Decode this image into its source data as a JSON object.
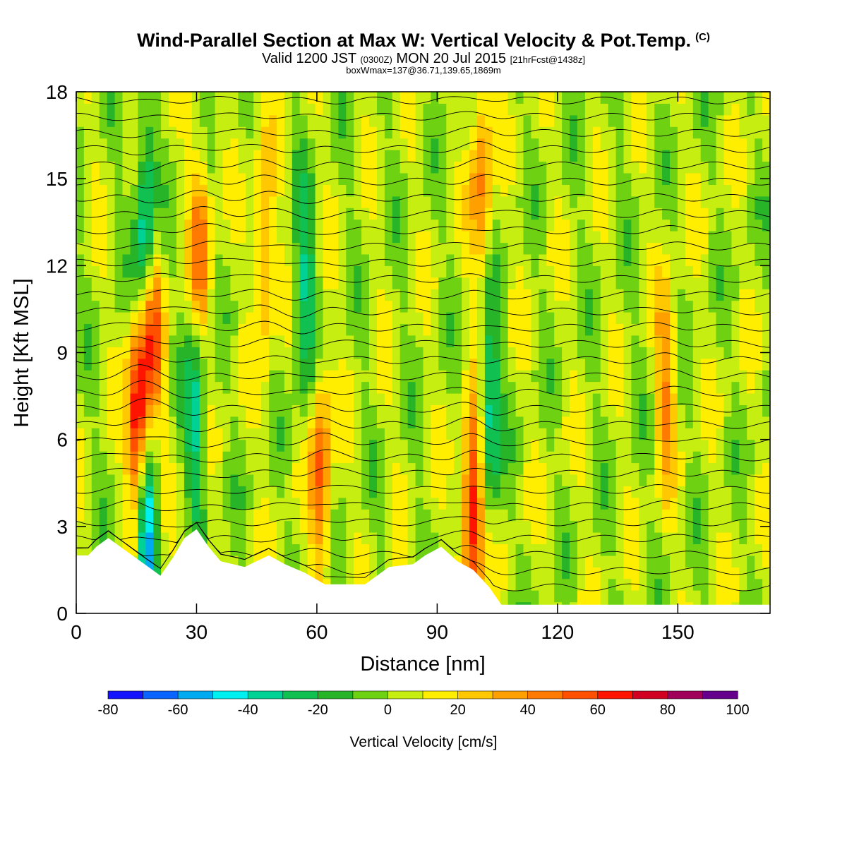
{
  "header": {
    "title": "Wind-Parallel Section at Max W: Vertical Velocity & Pot.Temp.",
    "copyright_mark": "(C)",
    "valid_prefix": "Valid 1200 JST",
    "utc_time": "(0300Z)",
    "valid_date": "MON 20 Jul 2015",
    "forecast_info": "[21hrFcst@1438z]",
    "box_info": "boxWmax=137@36.71,139.65,1869m"
  },
  "chart_data": {
    "type": "heatmap",
    "title": "Wind-Parallel Section at Max W: Vertical Velocity & Pot.Temp.",
    "xlabel": "Distance [nm]",
    "ylabel": "Height [Kft MSL]",
    "xlim": [
      0,
      173
    ],
    "ylim": [
      0,
      18
    ],
    "x_ticks": [
      "0",
      "30",
      "60",
      "90",
      "120",
      "150"
    ],
    "y_ticks": [
      "0",
      "3",
      "6",
      "9",
      "12",
      "15",
      "18"
    ],
    "x_tick_values": [
      0,
      30,
      60,
      90,
      120,
      150
    ],
    "y_tick_values": [
      0,
      3,
      6,
      9,
      12,
      15,
      18
    ],
    "colorbar": {
      "title": "Vertical Velocity [cm/s]",
      "labels": [
        "-80",
        "-60",
        "-40",
        "-20",
        "0",
        "20",
        "40",
        "60",
        "80",
        "100"
      ],
      "bounds": [
        -80,
        100
      ],
      "step": 10,
      "colors": [
        "#1414ff",
        "#0a64ff",
        "#00aaf0",
        "#00f0f0",
        "#00d296",
        "#10c050",
        "#28b428",
        "#6ed212",
        "#c6ee10",
        "#ffee00",
        "#ffc800",
        "#ffa000",
        "#ff7a00",
        "#ff5000",
        "#ff1400",
        "#d20020",
        "#a0005a",
        "#64008c"
      ]
    },
    "updrafts": [
      {
        "x": 15.5,
        "z_peak": 6.5,
        "w_max": 85
      },
      {
        "x": 19,
        "z_peak": 10,
        "w_max": 60
      },
      {
        "x": 31,
        "z_peak": 12.5,
        "w_max": 45
      },
      {
        "x": 47,
        "z_peak": 12.5,
        "w_max": 35
      },
      {
        "x": 61,
        "z_peak": 5,
        "w_max": 50
      },
      {
        "x": 99,
        "z_peak": 3.5,
        "w_max": 75
      },
      {
        "x": 101,
        "z_peak": 15,
        "w_max": 40
      },
      {
        "x": 147,
        "z_peak": 8,
        "w_max": 35
      }
    ],
    "downdrafts": [
      {
        "x": 17.3,
        "z_peak": 2.8,
        "w_min": -70
      },
      {
        "x": 17.5,
        "z_peak": 13,
        "w_min": -60
      },
      {
        "x": 30,
        "z_peak": 7,
        "w_min": -40
      },
      {
        "x": 57,
        "z_peak": 11,
        "w_min": -35
      },
      {
        "x": 103,
        "z_peak": 7,
        "w_min": -45
      }
    ],
    "terrain_kft": [
      {
        "x": 0,
        "z": 2.0
      },
      {
        "x": 3,
        "z": 2.0
      },
      {
        "x": 5,
        "z": 2.3
      },
      {
        "x": 8,
        "z": 2.6
      },
      {
        "x": 11,
        "z": 2.3
      },
      {
        "x": 14,
        "z": 2.0
      },
      {
        "x": 18,
        "z": 1.6
      },
      {
        "x": 21,
        "z": 1.3
      },
      {
        "x": 24,
        "z": 1.9
      },
      {
        "x": 27,
        "z": 2.6
      },
      {
        "x": 30,
        "z": 2.9
      },
      {
        "x": 33,
        "z": 2.3
      },
      {
        "x": 36,
        "z": 1.8
      },
      {
        "x": 42,
        "z": 1.6
      },
      {
        "x": 48,
        "z": 2.0
      },
      {
        "x": 52,
        "z": 1.7
      },
      {
        "x": 57,
        "z": 1.4
      },
      {
        "x": 62,
        "z": 1.0
      },
      {
        "x": 72,
        "z": 1.0
      },
      {
        "x": 78,
        "z": 1.6
      },
      {
        "x": 84,
        "z": 1.7
      },
      {
        "x": 87,
        "z": 2.0
      },
      {
        "x": 91,
        "z": 2.3
      },
      {
        "x": 95,
        "z": 1.8
      },
      {
        "x": 99,
        "z": 1.5
      },
      {
        "x": 103,
        "z": 0.9
      },
      {
        "x": 106,
        "z": 0.3
      },
      {
        "x": 173,
        "z": 0.3
      }
    ],
    "isentropes": {
      "count": 32,
      "spacing_kft": 0.56
    }
  }
}
